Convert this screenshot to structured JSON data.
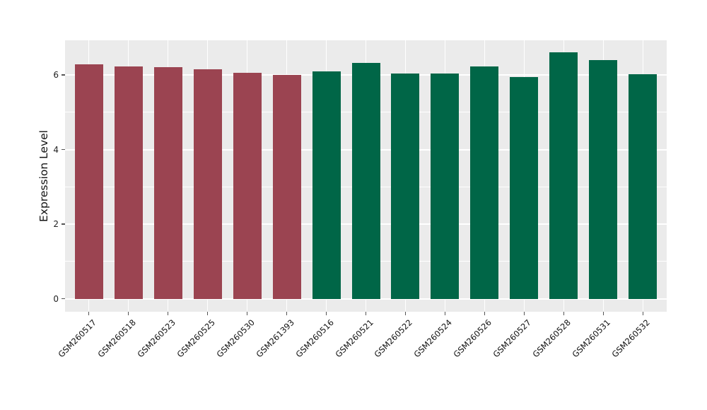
{
  "chart_data": {
    "type": "bar",
    "title": "",
    "xlabel": "",
    "ylabel": "Expression Level",
    "categories": [
      "GSM260517",
      "GSM260518",
      "GSM260523",
      "GSM260525",
      "GSM260530",
      "GSM261393",
      "GSM260516",
      "GSM260521",
      "GSM260522",
      "GSM260524",
      "GSM260526",
      "GSM260527",
      "GSM260528",
      "GSM260531",
      "GSM260532"
    ],
    "values": [
      6.29,
      6.23,
      6.21,
      6.16,
      6.05,
      6.0,
      6.1,
      6.33,
      6.03,
      6.03,
      6.22,
      5.95,
      6.61,
      6.39,
      6.01
    ],
    "bar_colors": [
      "#9B4451",
      "#9B4451",
      "#9B4451",
      "#9B4451",
      "#9B4451",
      "#9B4451",
      "#006647",
      "#006647",
      "#006647",
      "#006647",
      "#006647",
      "#006647",
      "#006647",
      "#006647",
      "#006647"
    ],
    "group_colors": {
      "red": "#9B4451",
      "green": "#006647"
    },
    "ylim": [
      0,
      6.93
    ],
    "yticks": [
      0,
      2,
      4,
      6
    ],
    "ytick_labels": [
      "0",
      "2",
      "4",
      "6"
    ],
    "minor_yticks": [
      1,
      3,
      5
    ],
    "grid": true,
    "legend_position": "none",
    "panel_background": "#EBEBEB",
    "gridline_color": "#FFFFFF"
  }
}
